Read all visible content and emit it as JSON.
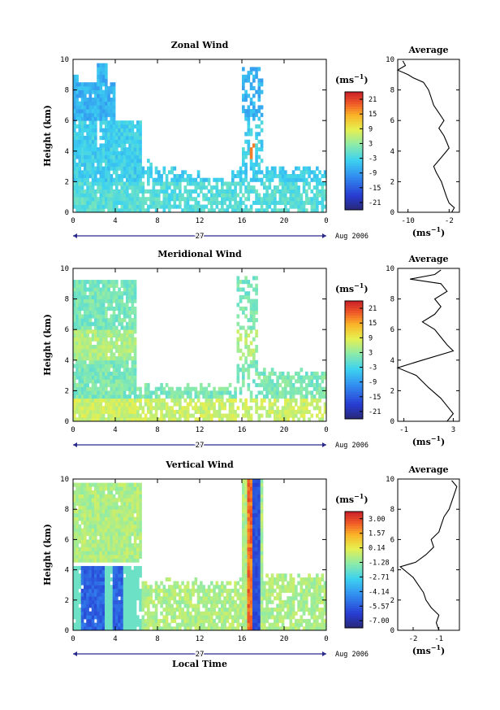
{
  "chart_data": [
    {
      "type": "heatmap",
      "panel": "zonal",
      "title": "Zonal Wind",
      "ylabel": "Height (km)",
      "xlabel": "",
      "xticks": [
        "0",
        "4",
        "8",
        "12",
        "16",
        "20",
        "0"
      ],
      "yticks": [
        "0",
        "2",
        "4",
        "6",
        "8",
        "10"
      ],
      "xlim": [
        0,
        24
      ],
      "ylim": [
        0,
        10
      ],
      "date_label": "27",
      "date_right": "Aug 2006",
      "colorbar": {
        "unit": "(ms",
        "unit_exp": "−1",
        "unit_close": ")",
        "ticks": [
          "21",
          "15",
          "9",
          "3",
          "-3",
          "-9",
          "-15",
          "-21"
        ],
        "range": [
          -24,
          24
        ]
      },
      "average": {
        "title": "Average",
        "xticks": [
          "-10",
          "-2"
        ],
        "xlim": [
          -12,
          0
        ],
        "unit": "(ms",
        "unit_exp": "−1",
        "unit_close": ")",
        "profile": [
          [
            -1.5,
            0
          ],
          [
            -1,
            0.3
          ],
          [
            -2,
            0.6
          ],
          [
            -2.5,
            1
          ],
          [
            -3,
            1.5
          ],
          [
            -3.5,
            2
          ],
          [
            -4.5,
            2.6
          ],
          [
            -5,
            3
          ],
          [
            -4,
            3.4
          ],
          [
            -3,
            3.8
          ],
          [
            -2,
            4.2
          ],
          [
            -2.5,
            4.6
          ],
          [
            -3,
            5
          ],
          [
            -4,
            5.5
          ],
          [
            -3,
            6
          ],
          [
            -4,
            6.5
          ],
          [
            -5,
            7
          ],
          [
            -5.5,
            7.5
          ],
          [
            -6,
            8
          ],
          [
            -7,
            8.5
          ],
          [
            -9,
            8.8
          ],
          [
            -10,
            9
          ],
          [
            -12,
            9.3
          ],
          [
            -10.5,
            9.6
          ],
          [
            -11,
            9.9
          ]
        ]
      }
    },
    {
      "type": "heatmap",
      "panel": "meridional",
      "title": "Meridional Wind",
      "ylabel": "Height (km)",
      "xlabel": "",
      "xticks": [
        "0",
        "4",
        "8",
        "12",
        "16",
        "20",
        "0"
      ],
      "yticks": [
        "0",
        "2",
        "4",
        "6",
        "8",
        "10"
      ],
      "xlim": [
        0,
        24
      ],
      "ylim": [
        0,
        10
      ],
      "date_label": "27",
      "date_right": "Aug 2006",
      "colorbar": {
        "unit": "(ms",
        "unit_exp": "−1",
        "unit_close": ")",
        "ticks": [
          "21",
          "15",
          "9",
          "3",
          "-3",
          "-9",
          "-15",
          "-21"
        ],
        "range": [
          -24,
          24
        ]
      },
      "average": {
        "title": "Average",
        "xticks": [
          "-1",
          "3"
        ],
        "xlim": [
          -1.5,
          3.5
        ],
        "unit": "(ms",
        "unit_exp": "−1",
        "unit_close": ")",
        "profile": [
          [
            2.5,
            0
          ],
          [
            3,
            0.5
          ],
          [
            2.5,
            1
          ],
          [
            2,
            1.5
          ],
          [
            1,
            2.2
          ],
          [
            0,
            3
          ],
          [
            -1.5,
            3.5
          ],
          [
            0.5,
            4
          ],
          [
            3,
            4.6
          ],
          [
            2.5,
            5
          ],
          [
            2,
            5.5
          ],
          [
            1.5,
            6
          ],
          [
            0.5,
            6.5
          ],
          [
            1.5,
            7
          ],
          [
            2,
            7.5
          ],
          [
            1.5,
            8
          ],
          [
            2.5,
            8.5
          ],
          [
            2,
            9
          ],
          [
            -0.5,
            9.3
          ],
          [
            1.5,
            9.6
          ],
          [
            2,
            9.9
          ]
        ]
      }
    },
    {
      "type": "heatmap",
      "panel": "vertical",
      "title": "Vertical Wind",
      "ylabel": "Height (km)",
      "xlabel": "Local Time",
      "xticks": [
        "0",
        "4",
        "8",
        "12",
        "16",
        "20",
        "0"
      ],
      "yticks": [
        "0",
        "2",
        "4",
        "6",
        "8",
        "10"
      ],
      "xlim": [
        0,
        24
      ],
      "ylim": [
        0,
        10
      ],
      "date_label": "27",
      "date_right": "Aug 2006",
      "colorbar": {
        "unit": "(ms",
        "unit_exp": "−1",
        "unit_close": ")",
        "ticks": [
          "3.00",
          "1.57",
          "0.14",
          "-1.28",
          "-2.71",
          "-4.14",
          "-5.57",
          "-7.00"
        ],
        "range": [
          -7.7,
          3.7
        ]
      },
      "average": {
        "title": "Average",
        "xticks": [
          "-2",
          "-1"
        ],
        "xlim": [
          -2.6,
          -0.2
        ],
        "unit": "(ms",
        "unit_exp": "−1",
        "unit_close": ")",
        "profile": [
          [
            -1,
            0
          ],
          [
            -1.1,
            0.5
          ],
          [
            -1,
            1
          ],
          [
            -1.3,
            1.5
          ],
          [
            -1.5,
            2
          ],
          [
            -1.6,
            2.5
          ],
          [
            -1.8,
            3
          ],
          [
            -2,
            3.5
          ],
          [
            -2.5,
            4.2
          ],
          [
            -1.9,
            4.5
          ],
          [
            -1.5,
            5
          ],
          [
            -1.2,
            5.5
          ],
          [
            -1.3,
            6
          ],
          [
            -1,
            6.5
          ],
          [
            -0.9,
            7
          ],
          [
            -0.8,
            7.5
          ],
          [
            -0.6,
            8
          ],
          [
            -0.5,
            8.5
          ],
          [
            -0.4,
            9
          ],
          [
            -0.3,
            9.5
          ],
          [
            -0.5,
            9.9
          ]
        ]
      }
    }
  ]
}
